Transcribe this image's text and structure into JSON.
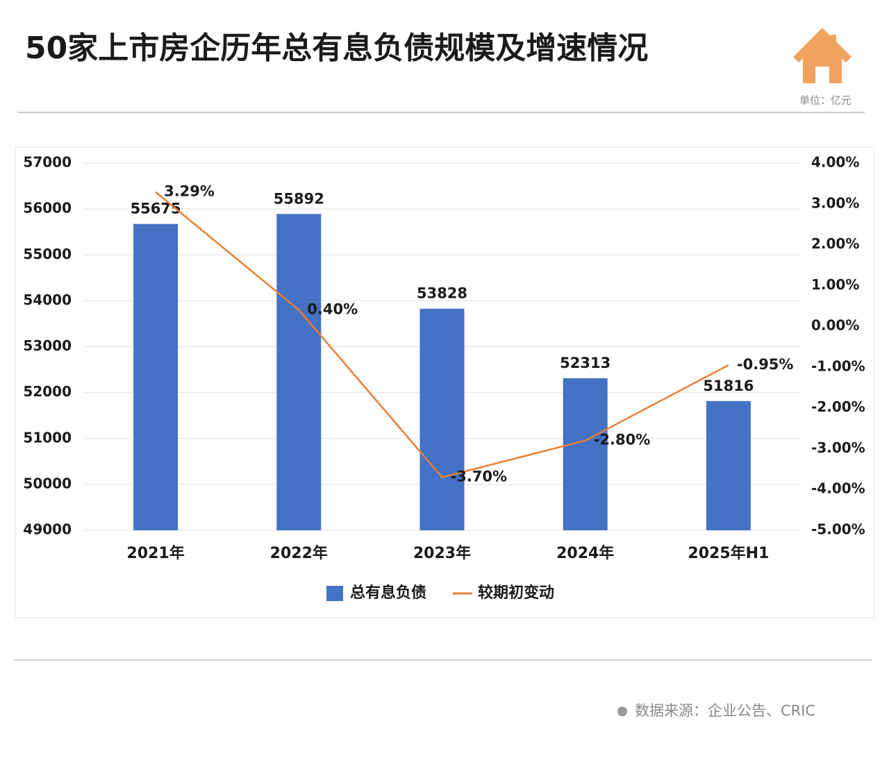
{
  "chart_data": {
    "type": "bar-line",
    "title": "50家上市房企历年总有息负债规模及增速情况",
    "unit": "单位：亿元",
    "source": "数据来源：企业公告、CRIC",
    "categories": [
      "2021年",
      "2022年",
      "2023年",
      "2024年",
      "2025年H1"
    ],
    "series": [
      {
        "name": "总有息负债",
        "type": "bar",
        "color": "#4472c4",
        "values": [
          55675,
          55892,
          53828,
          52313,
          51816
        ]
      },
      {
        "name": "较期初变动",
        "type": "line",
        "axis": "y2",
        "color": "#ed7d31",
        "values": [
          3.29,
          0.4,
          -3.7,
          -2.8,
          -0.95
        ],
        "value_labels": [
          "3.29%",
          "0.40%",
          "-3.70%",
          "-2.80%",
          "-0.95%"
        ]
      }
    ],
    "ylim": [
      49000,
      57000
    ],
    "yticks": [
      49000,
      50000,
      51000,
      52000,
      53000,
      54000,
      55000,
      56000,
      57000
    ],
    "y2lim": [
      -5,
      4
    ],
    "y2ticks": [
      {
        "value": -5,
        "label": "-5.00%"
      },
      {
        "value": -4,
        "label": "-4.00%"
      },
      {
        "value": -3,
        "label": "-3.00%"
      },
      {
        "value": -2,
        "label": "-2.00%"
      },
      {
        "value": -1,
        "label": "-1.00%"
      },
      {
        "value": 0,
        "label": "0.00%"
      },
      {
        "value": 1,
        "label": "1.00%"
      },
      {
        "value": 2,
        "label": "2.00%"
      },
      {
        "value": 3,
        "label": "3.00%"
      },
      {
        "value": 4,
        "label": "4.00%"
      }
    ],
    "grid": true,
    "legend": "bottom"
  }
}
